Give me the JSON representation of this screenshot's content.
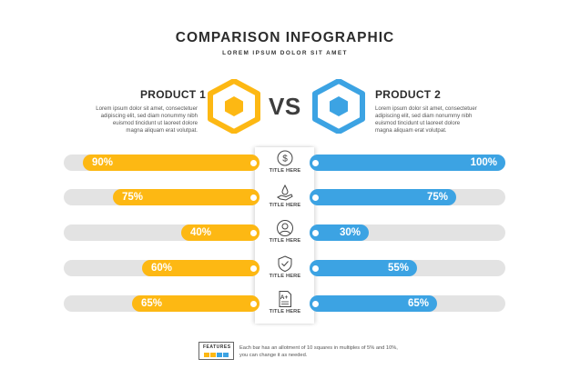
{
  "header": {
    "title": "COMPARISON INFOGRAPHIC",
    "subtitle": "LOREM IPSUM DOLOR SIT AMET"
  },
  "vs_label": "VS",
  "colors": {
    "product1": "#fdb813",
    "product2": "#3ca3e3",
    "track": "#e3e3e3"
  },
  "product1": {
    "name": "PRODUCT 1",
    "desc": [
      "Lorem ipsum dolor sit amet, consectetuer",
      "adipiscing elit, sed diam nonummy nibh",
      "euismod tincidunt ut laoreet dolore",
      "magna aliquam erat volutpat."
    ]
  },
  "product2": {
    "name": "PRODUCT 2",
    "desc": [
      "Lorem ipsum dolor sit amet, consectetuer",
      "adipiscing elit, sed diam nonummy nibh",
      "euismod tincidunt ut laoreet dolore",
      "magna aliquam erat volutpat."
    ]
  },
  "features": [
    {
      "label": "TITLE HERE",
      "icon": "dollar-icon",
      "left_value": 90,
      "left_text": "90%",
      "right_value": 100,
      "right_text": "100%"
    },
    {
      "label": "TITLE HERE",
      "icon": "hand-water-drop-icon",
      "left_value": 75,
      "left_text": "75%",
      "right_value": 75,
      "right_text": "75%"
    },
    {
      "label": "TITLE HERE",
      "icon": "user-icon",
      "left_value": 40,
      "left_text": "40%",
      "right_value": 30,
      "right_text": "30%"
    },
    {
      "label": "TITLE HERE",
      "icon": "shield-check-icon",
      "left_value": 60,
      "left_text": "60%",
      "right_value": 55,
      "right_text": "55%"
    },
    {
      "label": "TITLE HERE",
      "icon": "document-grade-icon",
      "left_value": 65,
      "left_text": "65%",
      "right_value": 65,
      "right_text": "65%"
    }
  ],
  "footer": {
    "label": "FEATURES",
    "text_lines": [
      "Each bar has an allotment of 10 squares in multiples of 5% and 10%,",
      "you can change it as needed."
    ]
  }
}
